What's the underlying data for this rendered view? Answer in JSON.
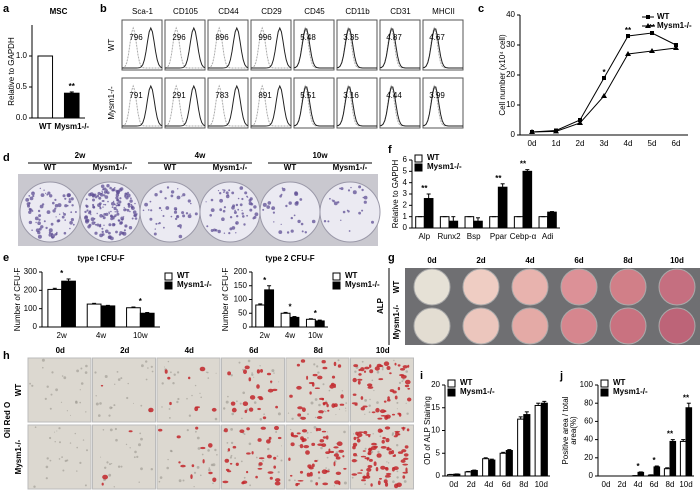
{
  "panels": [
    "a",
    "b",
    "c",
    "d",
    "e",
    "f",
    "g",
    "h",
    "i",
    "j"
  ],
  "chart_data": [
    {
      "type": "bar",
      "title": "MSC",
      "ylabel": "Relative to GAPDH",
      "categories": [
        "WT",
        "Mysm1-/-"
      ],
      "values": [
        1.0,
        0.4
      ],
      "errors": [
        0,
        0.02
      ],
      "colors": [
        "#ffffff",
        "#000000"
      ],
      "ylim": [
        0,
        1.5
      ],
      "yticks": [
        {
          "value": 0,
          "label": "0.0"
        },
        {
          "value": 0.5,
          "label": "0.5"
        },
        {
          "value": 1,
          "label": "1.0"
        }
      ],
      "annotations": [
        {
          "text": "**",
          "category": "Mysm1-/-"
        }
      ]
    },
    {
      "type": "line",
      "ylabel": "Cell number (x10⁴ cell)",
      "categories": [
        "0d",
        "1d",
        "2d",
        "3d",
        "4d",
        "5d",
        "6d"
      ],
      "series": [
        {
          "name": "WT",
          "color": "#000000",
          "marker": "square",
          "values": [
            1,
            1.5,
            5,
            19,
            33,
            34,
            30
          ]
        },
        {
          "name": "Mysm1-/-",
          "color": "#000000",
          "marker": "triangle",
          "values": [
            1,
            1.2,
            4,
            13,
            27,
            28,
            29
          ]
        }
      ],
      "ylim": [
        0,
        40
      ],
      "yticks": [
        0,
        10,
        20,
        30,
        40
      ],
      "legend": "upper right",
      "annotations": [
        {
          "text": "*",
          "category": "3d"
        },
        {
          "text": "**",
          "category": "4d"
        },
        {
          "text": "**",
          "category": "5d"
        }
      ]
    },
    {
      "type": "bar",
      "title": "type I CFU-F",
      "ylabel": "Number of CFU-F",
      "categories": [
        "2w",
        "4w",
        "10w"
      ],
      "series": [
        {
          "name": "WT",
          "color": "#ffffff",
          "values": [
            205,
            125,
            105
          ],
          "errors": [
            6,
            4,
            4
          ]
        },
        {
          "name": "Mysm1-/-",
          "color": "#000000",
          "values": [
            250,
            115,
            75
          ],
          "errors": [
            12,
            3,
            4
          ]
        }
      ],
      "ylim": [
        0,
        300
      ],
      "yticks": [
        0,
        100,
        200,
        300
      ],
      "legend": "outside right",
      "annotations": [
        {
          "text": "*",
          "category": "2w"
        },
        {
          "text": "*",
          "category": "10w"
        }
      ]
    },
    {
      "type": "bar",
      "title": "type 2 CFU-F",
      "ylabel": "Number of CFU-F",
      "categories": [
        "2w",
        "4w",
        "10w"
      ],
      "series": [
        {
          "name": "WT",
          "color": "#ffffff",
          "values": [
            80,
            50,
            28
          ],
          "errors": [
            4,
            3,
            2
          ]
        },
        {
          "name": "Mysm1-/-",
          "color": "#000000",
          "values": [
            135,
            35,
            22
          ],
          "errors": [
            15,
            3,
            3
          ]
        }
      ],
      "ylim": [
        0,
        200
      ],
      "yticks": [
        0,
        50,
        100,
        150,
        200
      ],
      "legend": "outside right",
      "annotations": [
        {
          "text": "*",
          "category": "2w"
        },
        {
          "text": "*",
          "category": "4w"
        },
        {
          "text": "*",
          "category": "10w"
        }
      ]
    },
    {
      "type": "bar",
      "ylabel": "Relative to GAPDH",
      "categories": [
        "Alp",
        "Runx2",
        "Bsp",
        "Ppar",
        "Cebp-α",
        "Adi"
      ],
      "series": [
        {
          "name": "WT",
          "color": "#ffffff",
          "values": [
            1,
            1,
            1,
            1,
            1,
            1
          ],
          "errors": [
            0,
            0,
            0,
            0,
            0,
            0
          ]
        },
        {
          "name": "Mysm1-/-",
          "color": "#000000",
          "values": [
            2.6,
            0.6,
            0.6,
            3.6,
            5.0,
            1.4
          ],
          "errors": [
            0.4,
            0.4,
            0.3,
            0.3,
            0.15,
            0.05
          ]
        }
      ],
      "ylim": [
        0,
        6
      ],
      "yticks": [
        0,
        1,
        2,
        3,
        4,
        5,
        6
      ],
      "legend": "upper left",
      "annotations": [
        {
          "text": "**",
          "category": "Alp"
        },
        {
          "text": "**",
          "category": "Ppar"
        },
        {
          "text": "**",
          "category": "Cebp-α"
        }
      ]
    },
    {
      "type": "bar",
      "ylabel": "OD of ALP Staining",
      "categories": [
        "0d",
        "2d",
        "4d",
        "6d",
        "8d",
        "10d"
      ],
      "series": [
        {
          "name": "WT",
          "color": "#ffffff",
          "values": [
            0.3,
            0.9,
            3.8,
            5,
            12.5,
            15.5
          ],
          "errors": [
            0.05,
            0.1,
            0.2,
            0.2,
            0.5,
            0.5
          ]
        },
        {
          "name": "Mysm1-/-",
          "color": "#000000",
          "values": [
            0.4,
            1.2,
            3.5,
            5.6,
            13.5,
            16
          ],
          "errors": [
            0.05,
            0.1,
            0.2,
            0.2,
            0.6,
            0.4
          ]
        }
      ],
      "ylim": [
        0,
        20
      ],
      "yticks": [
        0,
        5,
        10,
        15,
        20
      ],
      "legend": "upper left"
    },
    {
      "type": "bar",
      "ylabel": [
        "Positive area / total",
        "area(%)"
      ],
      "categories": [
        "0d",
        "2d",
        "4d",
        "6d",
        "8d",
        "10d"
      ],
      "series": [
        {
          "name": "WT",
          "color": "#ffffff",
          "values": [
            0,
            0,
            0.3,
            1,
            8,
            38
          ],
          "errors": [
            0,
            0,
            0.1,
            0.3,
            1,
            2
          ]
        },
        {
          "name": "Mysm1-/-",
          "color": "#000000",
          "values": [
            0,
            0,
            4,
            10,
            38,
            75
          ],
          "errors": [
            0,
            0,
            0.5,
            1,
            2,
            5
          ]
        }
      ],
      "ylim": [
        0,
        100
      ],
      "yticks": [
        0,
        20,
        40,
        60,
        80,
        100
      ],
      "legend": "upper left",
      "annotations": [
        {
          "text": "*",
          "category": "4d"
        },
        {
          "text": "*",
          "category": "6d"
        },
        {
          "text": "**",
          "category": "8d"
        },
        {
          "text": "**",
          "category": "10d"
        }
      ]
    }
  ],
  "flow": {
    "markers": [
      "Sca-1",
      "CD105",
      "CD44",
      "CD29",
      "CD45",
      "CD11b",
      "CD31",
      "MHCII"
    ],
    "rows": [
      {
        "label": "WT",
        "values": [
          796,
          296,
          896,
          996,
          5.48,
          3.35,
          4.87,
          4.67
        ]
      },
      {
        "label": "Mysm1-/-",
        "values": [
          791,
          291,
          783,
          891,
          5.51,
          3.16,
          4.44,
          3.99
        ]
      }
    ]
  },
  "colony": {
    "groups": [
      "2w",
      "4w",
      "10w"
    ],
    "columns": [
      "WT",
      "Mysm1-/-",
      "WT",
      "Mysm1-/-",
      "WT",
      "Mysm1-/-"
    ]
  },
  "alp": {
    "label": "ALP",
    "days": [
      "0d",
      "2d",
      "4d",
      "6d",
      "8d",
      "10d"
    ],
    "rows": [
      "WT",
      "Mysm1-/-"
    ]
  },
  "oil_red": {
    "label": "Oil Red O",
    "days": [
      "0d",
      "2d",
      "4d",
      "6d",
      "8d",
      "10d"
    ],
    "rows": [
      "WT",
      "Mysm1-/-"
    ]
  }
}
